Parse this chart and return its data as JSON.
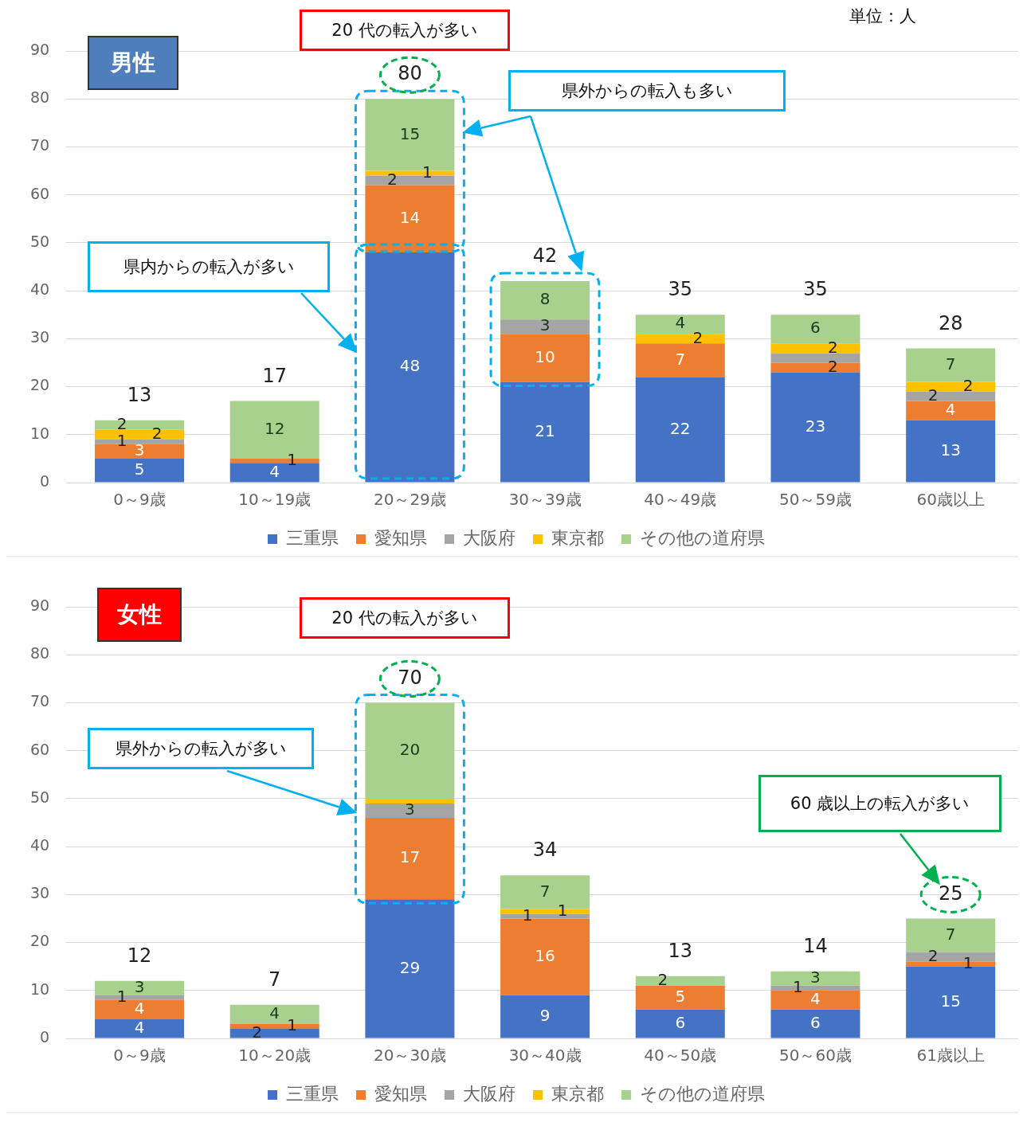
{
  "chart_data": [
    {
      "type": "bar",
      "title": "男性",
      "categories": [
        "0～9歳",
        "10～19歳",
        "20～29歳",
        "30～39歳",
        "40～49歳",
        "50～59歳",
        "60歳以上"
      ],
      "stacked": true,
      "ylim": [
        0,
        90
      ],
      "yticks": [
        0,
        10,
        20,
        30,
        40,
        50,
        60,
        70,
        80,
        90
      ],
      "grid": "y",
      "legend": "bottom",
      "series": [
        {
          "name": "三重県",
          "color": "#4472c4",
          "values": [
            5,
            4,
            48,
            21,
            22,
            23,
            13
          ],
          "value_labels": [
            "5",
            "4",
            "48",
            "21",
            "22",
            "23",
            "13"
          ]
        },
        {
          "name": "愛知県",
          "color": "#ed7d31",
          "values": [
            3,
            1,
            14,
            10,
            7,
            2,
            4
          ],
          "value_labels": [
            "3",
            "1",
            "14",
            "10",
            "7",
            "2",
            "4"
          ]
        },
        {
          "name": "大阪府",
          "color": "#a5a5a5",
          "values": [
            1,
            0,
            2,
            3,
            0,
            2,
            2
          ],
          "value_labels": [
            "1",
            null,
            "2",
            "3",
            null,
            null,
            "2"
          ]
        },
        {
          "name": "東京都",
          "color": "#ffc000",
          "values": [
            2,
            0,
            1,
            0,
            2,
            2,
            2
          ],
          "value_labels": [
            "2",
            null,
            "1",
            null,
            "2",
            "2",
            "2"
          ]
        },
        {
          "name": "その他の道府県",
          "color": "#a9d18e",
          "values": [
            2,
            12,
            15,
            8,
            4,
            6,
            7
          ],
          "value_labels": [
            "2",
            "12",
            "15",
            "8",
            "4",
            "6",
            "7"
          ]
        }
      ],
      "totals": [
        "13",
        "17",
        "80",
        "42",
        "35",
        "35",
        "28"
      ],
      "annotations": [
        "20 代の転入が多い",
        "県外からの転入も多い",
        "県内からの転入が多い",
        "単位：人"
      ]
    },
    {
      "type": "bar",
      "title": "女性",
      "categories": [
        "0～9歳",
        "10～20歳",
        "20～30歳",
        "30～40歳",
        "40～50歳",
        "50～60歳",
        "61歳以上"
      ],
      "stacked": true,
      "ylim": [
        0,
        90
      ],
      "yticks": [
        0,
        10,
        20,
        30,
        40,
        50,
        60,
        70,
        80,
        90
      ],
      "grid": "y",
      "legend": "bottom",
      "series": [
        {
          "name": "三重県",
          "color": "#4472c4",
          "values": [
            4,
            2,
            29,
            9,
            6,
            6,
            15
          ],
          "value_labels": [
            "4",
            "2",
            "29",
            "9",
            "6",
            "6",
            "15"
          ]
        },
        {
          "name": "愛知県",
          "color": "#ed7d31",
          "values": [
            4,
            1,
            17,
            16,
            5,
            4,
            1
          ],
          "value_labels": [
            "4",
            "1",
            "17",
            "16",
            "5",
            "4",
            "1"
          ]
        },
        {
          "name": "大阪府",
          "color": "#a5a5a5",
          "values": [
            1,
            0,
            3,
            1,
            0,
            1,
            2
          ],
          "value_labels": [
            "1",
            null,
            "3",
            "1",
            null,
            "1",
            "2"
          ]
        },
        {
          "name": "東京都",
          "color": "#ffc000",
          "values": [
            0,
            0,
            1,
            1,
            0,
            0,
            0
          ],
          "value_labels": [
            null,
            null,
            null,
            "1",
            null,
            null,
            null
          ]
        },
        {
          "name": "その他の道府県",
          "color": "#a9d18e",
          "values": [
            3,
            4,
            20,
            7,
            2,
            3,
            7
          ],
          "value_labels": [
            "3",
            "4",
            "20",
            "7",
            "2",
            "3",
            "7"
          ]
        }
      ],
      "totals": [
        "12",
        "7",
        "70",
        "34",
        "13",
        "14",
        "25"
      ],
      "annotations": [
        "20 代の転入が多い",
        "県外からの転入が多い",
        "60 歳以上の転入が多い"
      ]
    }
  ]
}
